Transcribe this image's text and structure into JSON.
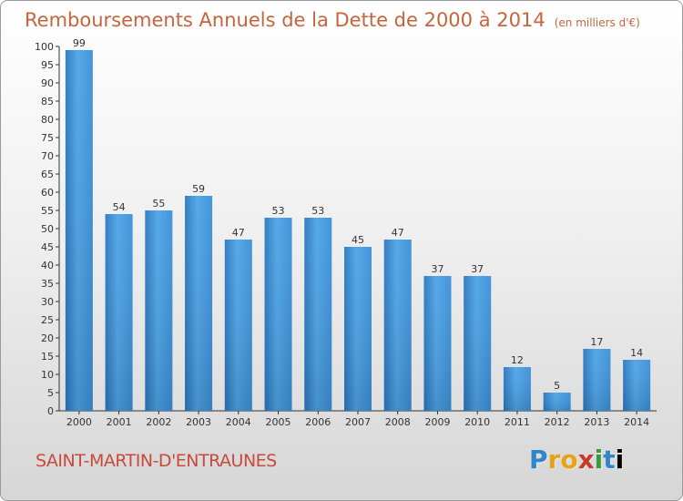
{
  "chart_data": {
    "type": "bar",
    "title": "Remboursements Annuels de la Dette de 2000 à 2014",
    "unit": "(en milliers d'€)",
    "categories": [
      "2000",
      "2001",
      "2002",
      "2003",
      "2004",
      "2005",
      "2006",
      "2007",
      "2008",
      "2009",
      "2010",
      "2011",
      "2012",
      "2013",
      "2014"
    ],
    "values": [
      99,
      54,
      55,
      59,
      47,
      53,
      53,
      45,
      47,
      37,
      37,
      12,
      5,
      17,
      14
    ],
    "ylim": [
      0,
      100
    ],
    "yticks": [
      0,
      5,
      10,
      15,
      20,
      25,
      30,
      35,
      40,
      45,
      50,
      55,
      60,
      65,
      70,
      75,
      80,
      85,
      90,
      95,
      100
    ],
    "grid": false,
    "bar_color": "#3a8fd8"
  },
  "footer": {
    "commune": "SAINT-MARTIN-D'ENTRAUNES",
    "logo_letters": [
      "P",
      "r",
      "o",
      "x",
      "i",
      "t",
      "i"
    ]
  }
}
